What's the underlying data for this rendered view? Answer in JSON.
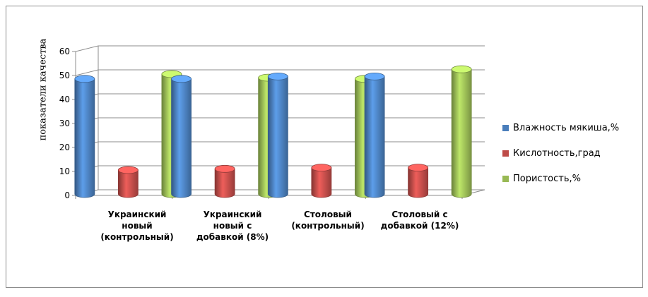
{
  "chart_data": {
    "type": "bar",
    "title": "",
    "xlabel": "",
    "ylabel": "показатели качества",
    "ylim": [
      0,
      60
    ],
    "yticks": [
      "0",
      "10",
      "20",
      "30",
      "40",
      "50",
      "60"
    ],
    "grid": true,
    "legend_position": "right",
    "categories": [
      "Украинский\nновый\n(контрольный)",
      "Украинский\nновый с\nдобавкой (8%)",
      "Столовый\n(контрольный)",
      "Столовый с\nдобавкой (12%)"
    ],
    "series": [
      {
        "name": "Влажность мякиша,%",
        "color": "#4a7ebb",
        "values": [
          48,
          48,
          49,
          49
        ]
      },
      {
        "name": "Кислотность,град",
        "color": "#be4b48",
        "values": [
          10,
          10.5,
          11,
          11
        ]
      },
      {
        "name": "Пористость,%",
        "color": "#98b954",
        "values": [
          50,
          48.5,
          48,
          52
        ]
      }
    ]
  }
}
